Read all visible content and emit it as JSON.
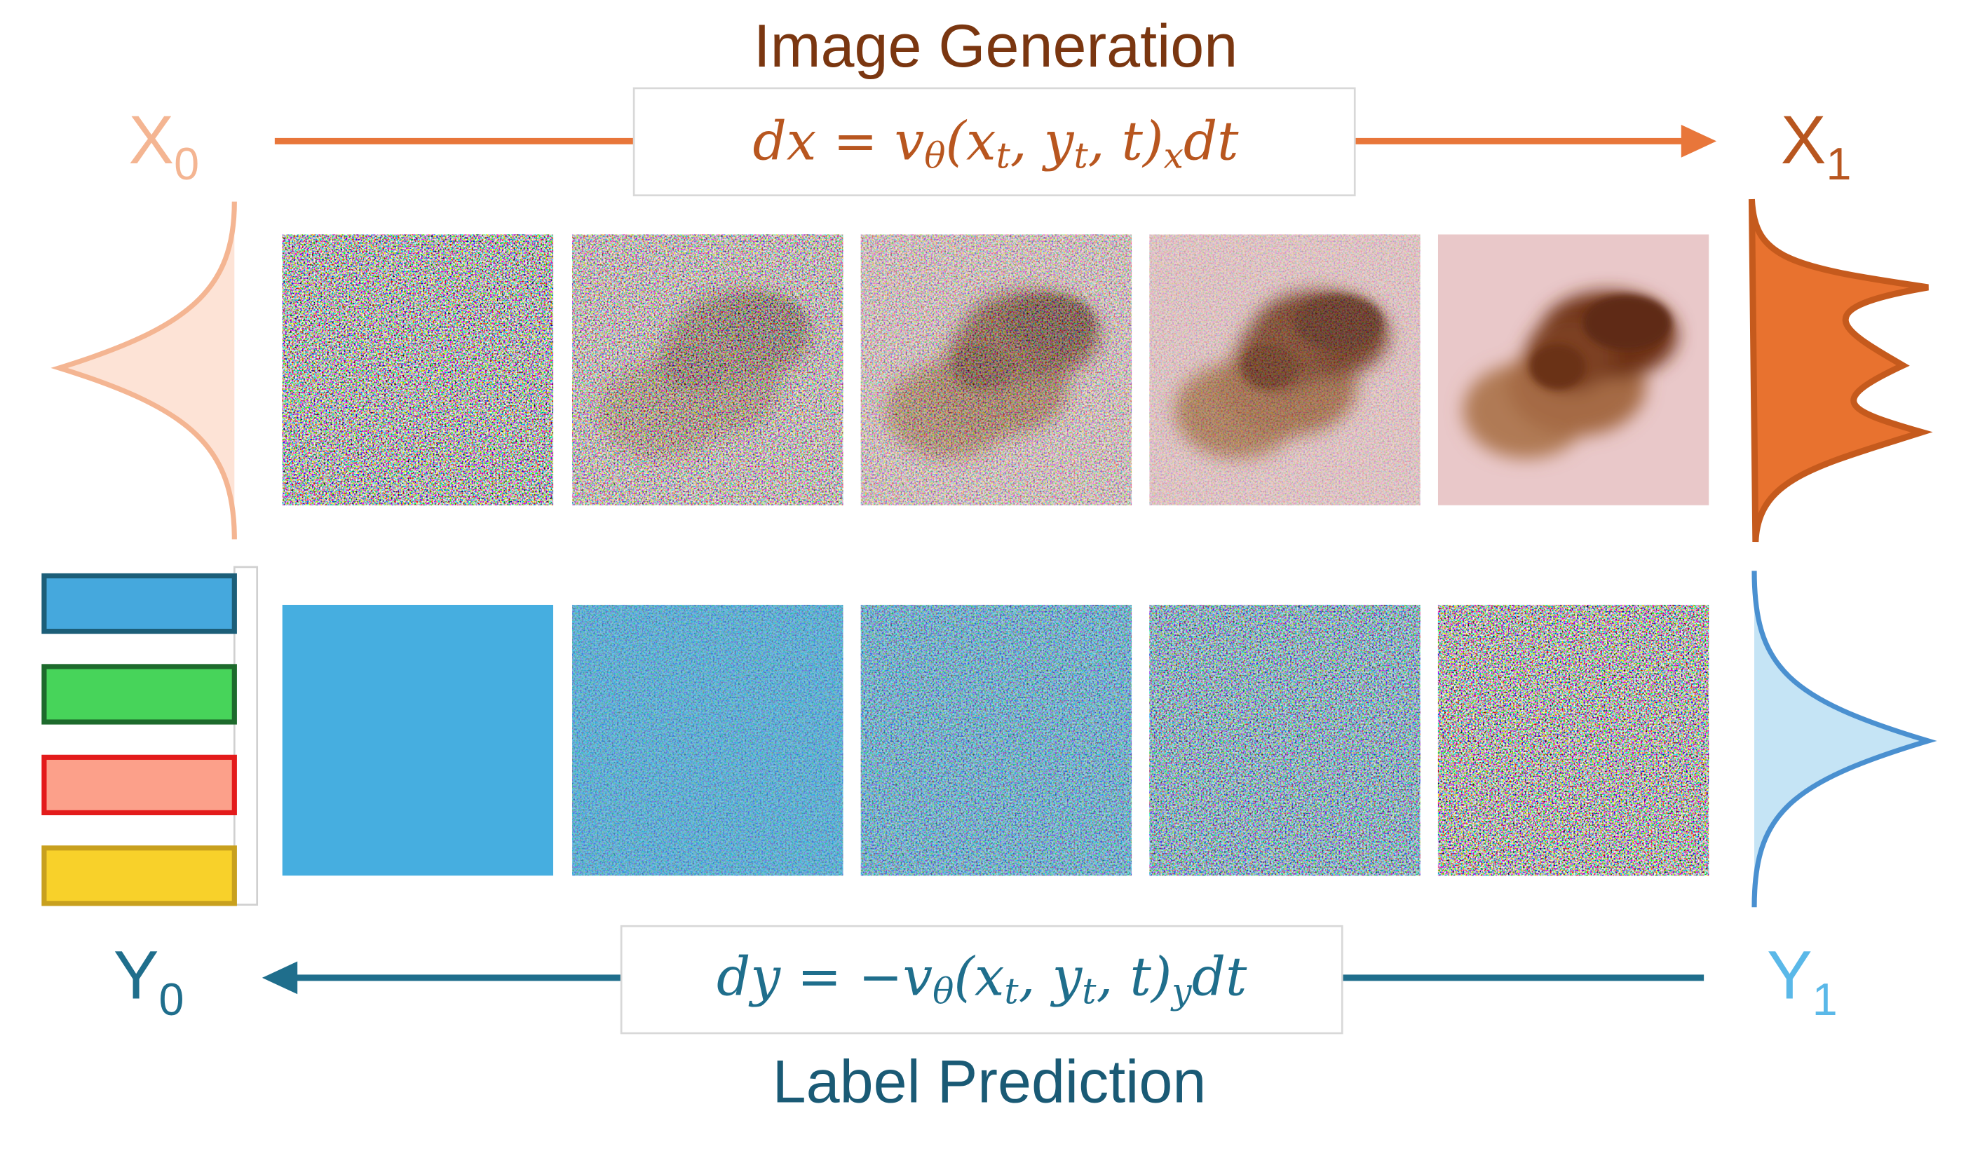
{
  "top": {
    "title": "Image Generation",
    "start": {
      "main": "X",
      "sub": "0"
    },
    "end": {
      "main": "X",
      "sub": "1"
    },
    "formula": [
      {
        "text": "dx = v"
      },
      {
        "sub": "θ"
      },
      {
        "text": "(x"
      },
      {
        "sub": "t"
      },
      {
        "text": ", y"
      },
      {
        "sub": "t"
      },
      {
        "text": ", t)"
      },
      {
        "sub": "x"
      },
      {
        "text": "dt"
      }
    ]
  },
  "bottom": {
    "title": "Label Prediction",
    "start": {
      "main": "Y",
      "sub": "1"
    },
    "end": {
      "main": "Y",
      "sub": "0"
    },
    "formula": [
      {
        "text": "dy = −v"
      },
      {
        "sub": "θ"
      },
      {
        "text": "(x"
      },
      {
        "sub": "t"
      },
      {
        "text": ", y"
      },
      {
        "sub": "t"
      },
      {
        "text": ", t)"
      },
      {
        "sub": "y"
      },
      {
        "text": "dt"
      }
    ]
  }
}
